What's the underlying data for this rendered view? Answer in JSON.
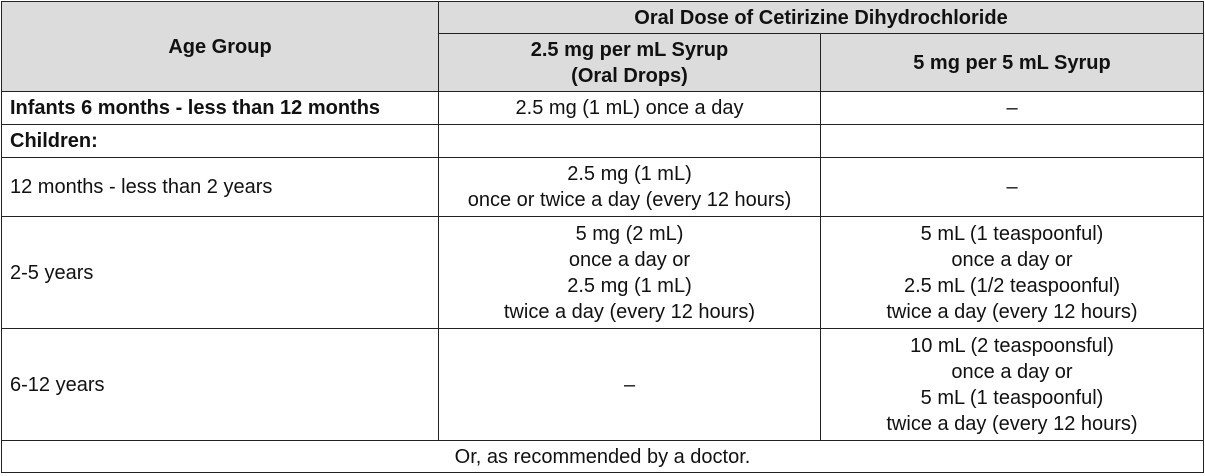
{
  "header": {
    "age_group": "Age Group",
    "oral_dose": "Oral Dose of Cetirizine Dihydrochloride",
    "col_drops": "2.5 mg per mL Syrup\n(Oral Drops)",
    "col_syrup": "5 mg per 5 mL Syrup"
  },
  "rows": [
    {
      "age": "Infants 6 months - less than 12 months",
      "drops": "2.5 mg (1 mL) once a day",
      "syrup": "–"
    },
    {
      "age": "Children:",
      "drops": "",
      "syrup": ""
    },
    {
      "age": "12 months - less than 2 years",
      "drops": "2.5 mg (1 mL)\nonce or twice a day (every 12 hours)",
      "syrup": "–"
    },
    {
      "age": "2-5 years",
      "drops": "5 mg (2 mL)\nonce a day or\n2.5 mg (1 mL)\ntwice a day (every 12 hours)",
      "syrup": "5 mL (1 teaspoonful)\nonce a day or\n2.5 mL (1/2 teaspoonful)\ntwice a day (every 12 hours)"
    },
    {
      "age": "6-12 years",
      "drops": "–",
      "syrup": "10 mL (2 teaspoonsful)\nonce a day or\n5 mL (1 teaspoonful)\ntwice a day (every 12 hours)"
    }
  ],
  "footer": "Or, as recommended by a doctor."
}
